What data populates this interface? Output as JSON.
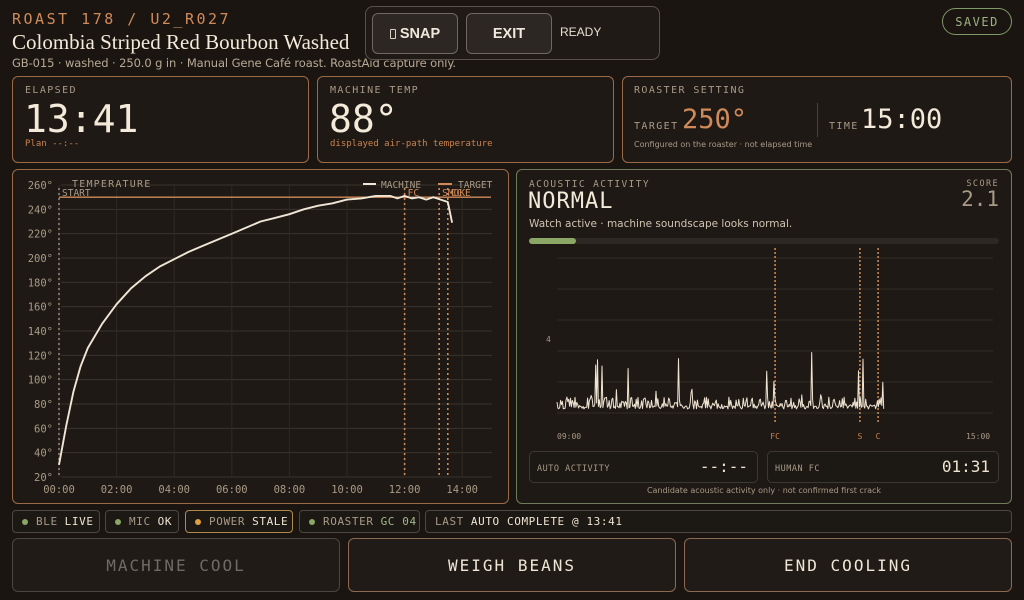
{
  "header": {
    "code": "ROAST 178 / U2_R027",
    "title": "Colombia Striped Red Bourbon Washed",
    "subtitle": "GB-015 · washed · 250.0 g in · Manual Gene Café roast. RoastAid capture only."
  },
  "controls": {
    "snap_label": "SNAP",
    "exit_label": "EXIT",
    "status": "READY"
  },
  "saved_label": "SAVED",
  "elapsed": {
    "label": "ELAPSED",
    "value": "13:41",
    "plan": "Plan --:--"
  },
  "machine_temp": {
    "label": "MACHINE TEMP",
    "value": "88°",
    "note": "displayed air-path temperature"
  },
  "roaster_setting": {
    "label": "ROASTER SETTING",
    "target_label": "TARGET",
    "target_value": "250°",
    "time_label": "TIME",
    "time_value": "15:00",
    "note": "Configured on the roaster · not elapsed time"
  },
  "acoustic": {
    "label": "ACOUSTIC ACTIVITY",
    "score_label": "SCORE",
    "score_value": "2.1",
    "state": "NORMAL",
    "message": "Watch active · machine soundscape looks normal.",
    "level_fraction": 0.1,
    "y_tick": "4",
    "x_start": "09:00",
    "x_end": "15:00",
    "markers": [
      {
        "label": "FC",
        "time": "12:00"
      },
      {
        "label": "S",
        "time": "13:10"
      },
      {
        "label": "C",
        "time": "13:25"
      }
    ],
    "auto_activity_label": "AUTO ACTIVITY",
    "auto_activity_value": "--:--",
    "human_fc_label": "HUMAN FC",
    "human_fc_value": "01:31",
    "footer": "Candidate acoustic activity only · not confirmed first crack"
  },
  "status_chips": {
    "ble_label": "BLE",
    "ble_value": "LIVE",
    "mic_label": "MIC",
    "mic_value": "OK",
    "power_label": "POWER",
    "power_value": "STALE",
    "roaster_label": "ROASTER",
    "roaster_value": "GC 04",
    "last_label": "LAST",
    "last_value": "AUTO COMPLETE @ 13:41"
  },
  "actions": {
    "machine_cool": "MACHINE COOL",
    "weigh_beans": "WEIGH BEANS",
    "end_cooling": "END COOLING"
  },
  "colors": {
    "accent": "#d08a5a",
    "ok_green": "#8aa765",
    "warn": "#e0a040",
    "curve": "#f0e6d6"
  },
  "chart_data": {
    "type": "line",
    "title": "TEMPERATURE",
    "xlabel": "",
    "ylabel": "",
    "xlim": [
      0,
      15
    ],
    "ylim": [
      20,
      260
    ],
    "x_ticks": [
      "00:00",
      "02:00",
      "04:00",
      "06:00",
      "08:00",
      "10:00",
      "12:00",
      "14:00"
    ],
    "y_ticks": [
      "20°",
      "40°",
      "60°",
      "80°",
      "100°",
      "120°",
      "140°",
      "160°",
      "180°",
      "200°",
      "220°",
      "240°",
      "260°"
    ],
    "legend": [
      "MACHINE",
      "TARGET"
    ],
    "legend_position": "top-right",
    "grid": true,
    "series": [
      {
        "name": "MACHINE",
        "x": [
          0,
          0.25,
          0.5,
          0.75,
          1,
          1.5,
          2,
          2.5,
          3,
          3.5,
          4,
          4.5,
          5,
          6,
          7,
          7.5,
          8,
          8.5,
          9,
          9.5,
          10,
          10.5,
          11,
          11.5,
          11.75,
          12,
          12.25,
          12.5,
          12.75,
          13,
          13.25,
          13.5,
          13.65
        ],
        "y": [
          30,
          62,
          90,
          111,
          126,
          146,
          162,
          175,
          185,
          193,
          199,
          205,
          210,
          220,
          230,
          233,
          236,
          240,
          243,
          245,
          248,
          249,
          251,
          251,
          249,
          251,
          249,
          250,
          248,
          250,
          248,
          246,
          229
        ]
      },
      {
        "name": "TARGET",
        "x": [
          0,
          15
        ],
        "y": [
          250,
          250
        ]
      }
    ],
    "markers": [
      {
        "label": "START",
        "x": 0
      },
      {
        "label": "FC",
        "x": 12.0
      },
      {
        "label": "SMOKE",
        "x": 13.2
      },
      {
        "label": "CC",
        "x": 13.5
      }
    ]
  }
}
